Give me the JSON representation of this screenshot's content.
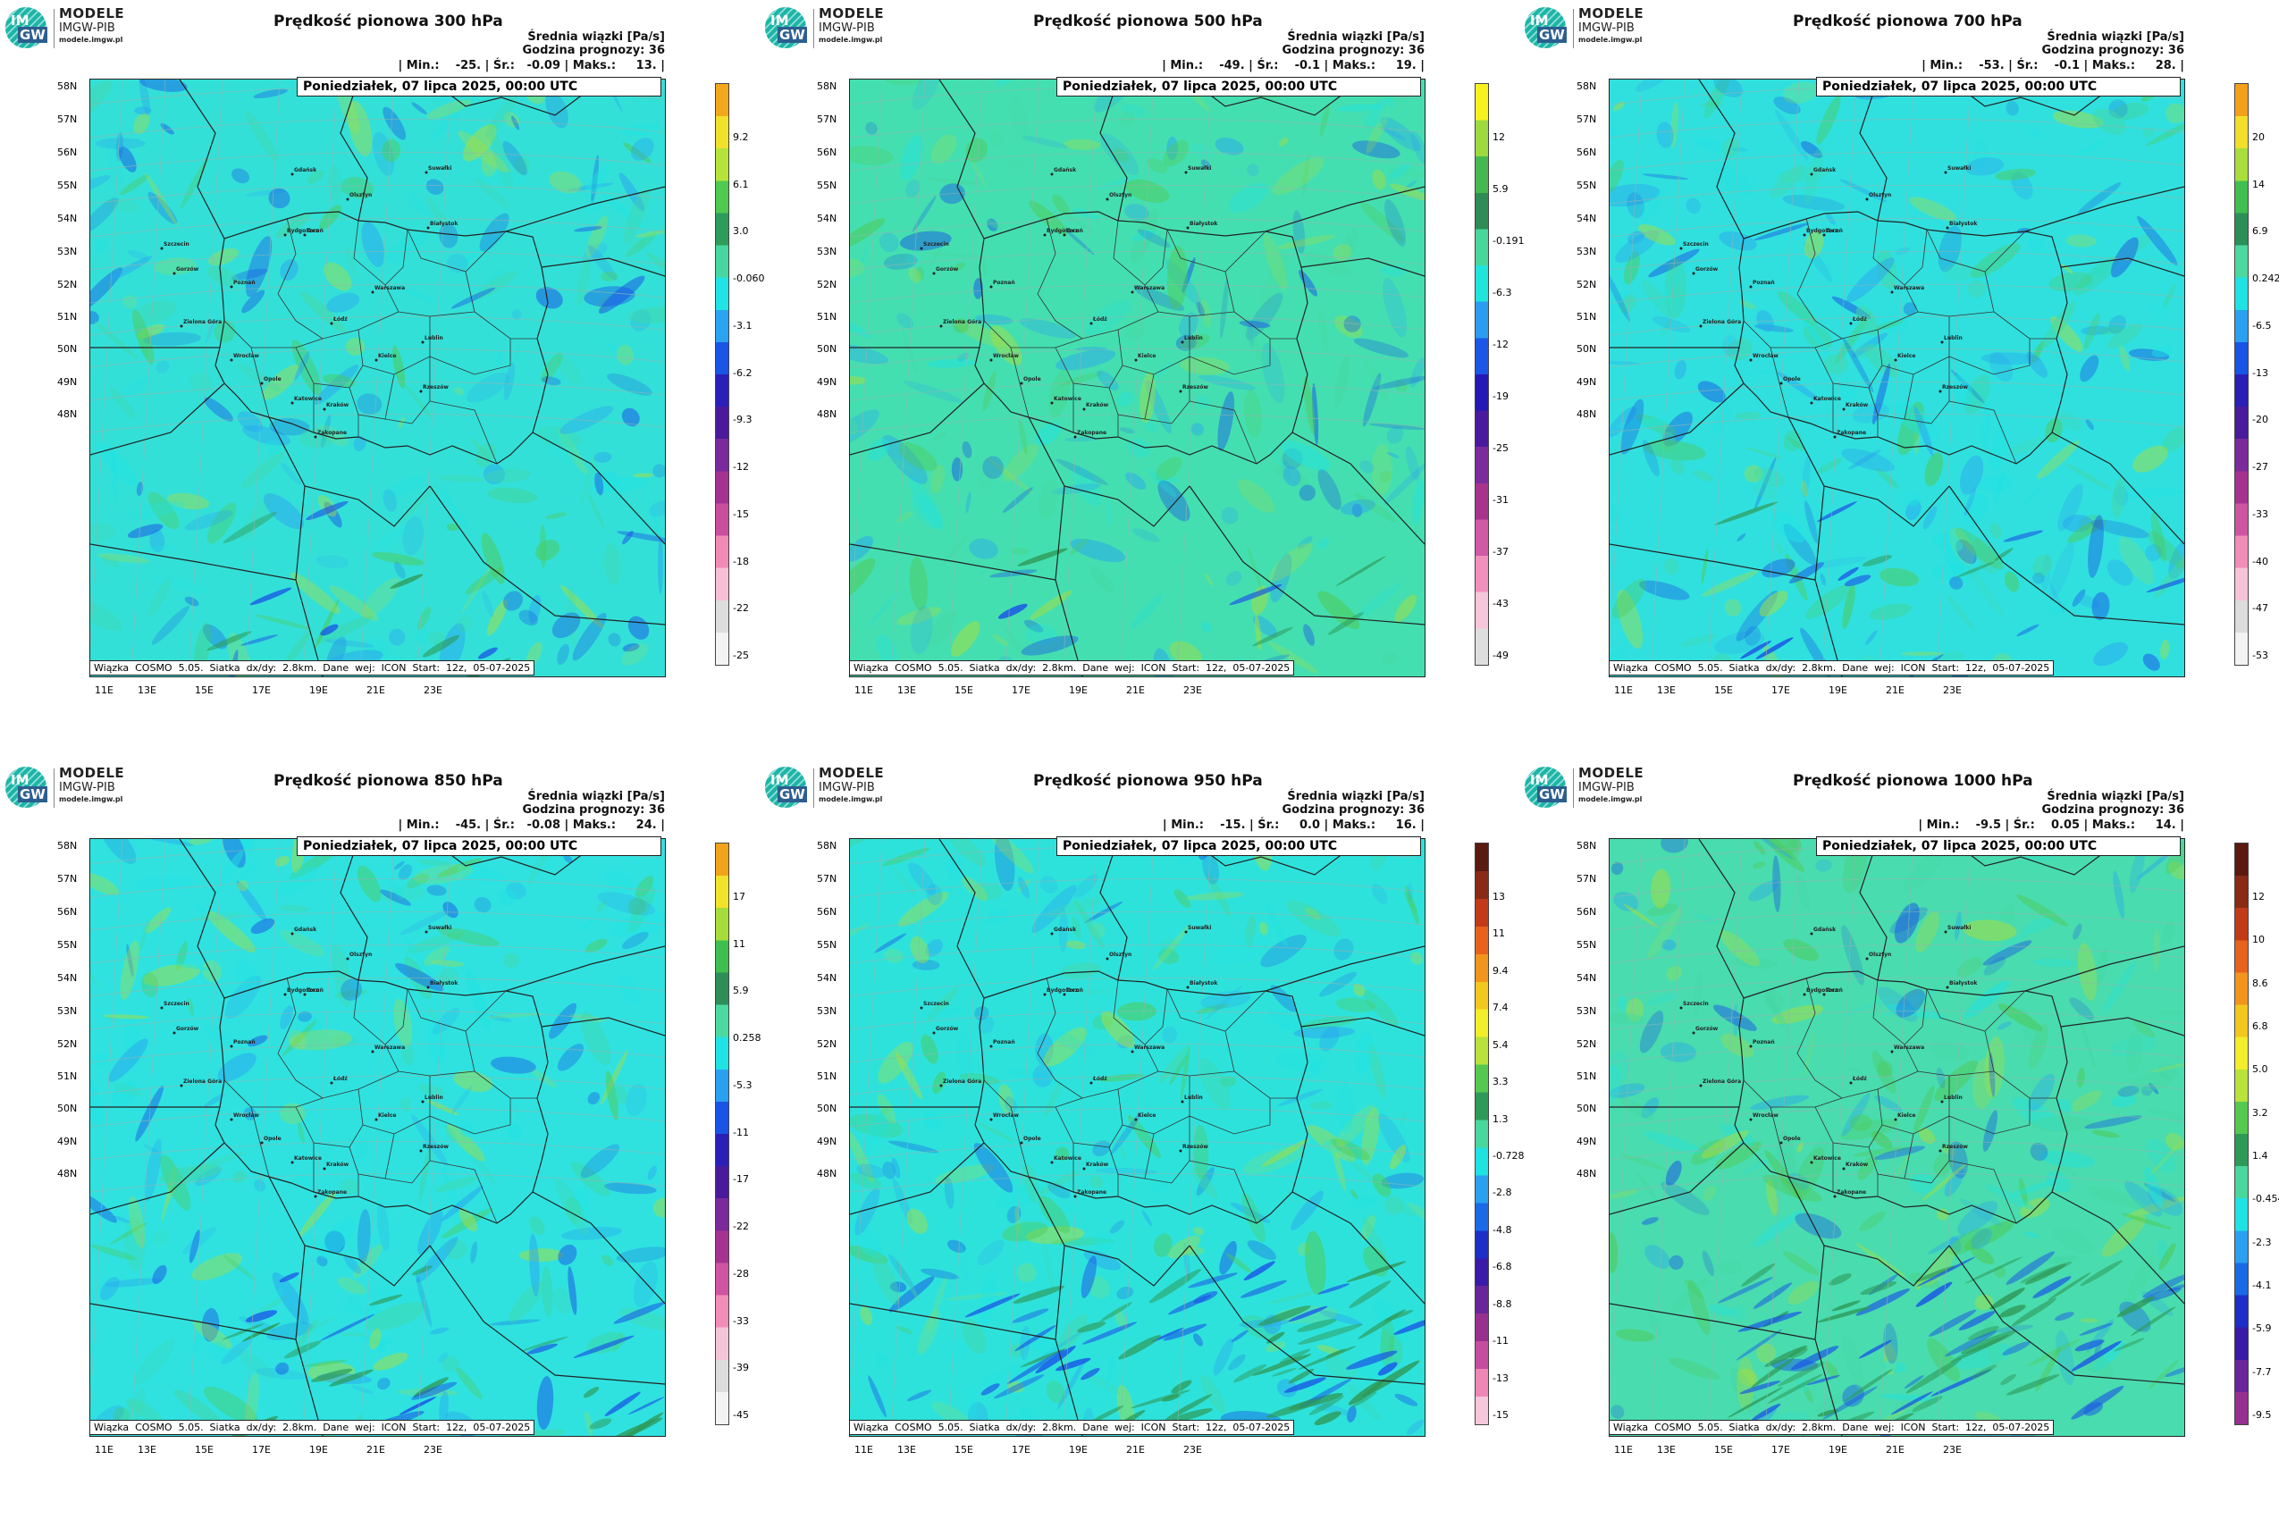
{
  "logo": {
    "line1": "MODELE",
    "line2": "IMGW-PIB",
    "line3": "modele.imgw.pl",
    "mark_top": "IM",
    "mark_bottom": "GW"
  },
  "common": {
    "date": "Poniedziałek, 07 lipca 2025, 00:00 UTC",
    "footer": "Wiązka  COSMO  5.05.  Siatka  dx/dy:  2.8km.  Dane  wej:  ICON  Start:  12z,  05-07-2025",
    "lat_ticks": [
      "58N",
      "57N",
      "56N",
      "55N",
      "54N",
      "53N",
      "52N",
      "51N",
      "50N",
      "49N",
      "48N"
    ],
    "lon_ticks": [
      "11E",
      "13E",
      "15E",
      "17E",
      "19E",
      "21E",
      "23E"
    ]
  },
  "panels": [
    {
      "title": "Prędkość pionowa 300 hPa",
      "info_line1": "Średnia wiązki [Pa/s]",
      "info_line2": "Godzina prognozy: 36",
      "stats": "| Min.:    -25. | Śr.:   -0.09 | Maks.:     13. |",
      "colorbar_labels": [
        "9.2",
        "6.1",
        "3.0",
        "-0.060",
        "-3.1",
        "-6.2",
        "-9.3",
        "-12",
        "-15",
        "-18",
        "-22",
        "-25"
      ],
      "colorbar_colors": [
        "#f2a81c",
        "#f2e12a",
        "#b6e33a",
        "#4fc950",
        "#2e9c5a",
        "#47d7a0",
        "#20e3e3",
        "#2aa4f0",
        "#1a55e6",
        "#2a1fb8",
        "#4b1a9c",
        "#7a2a9c",
        "#a3338f",
        "#c94f9d",
        "#f28ab6",
        "#f5c0d6",
        "#dddddd",
        "#f3f3f3"
      ],
      "seed": 3
    },
    {
      "title": "Prędkość pionowa 500 hPa",
      "info_line1": "Średnia wiązki [Pa/s]",
      "info_line2": "Godzina prognozy: 36",
      "stats": "| Min.:    -49. | Śr.:    -0.1 | Maks.:     19. |",
      "colorbar_labels": [
        "12",
        "5.9",
        "-0.191",
        "-6.3",
        "-12",
        "-19",
        "-25",
        "-31",
        "-37",
        "-43",
        "-49"
      ],
      "colorbar_colors": [
        "#f7f21e",
        "#9ed93d",
        "#45b94f",
        "#2e8c55",
        "#48d79a",
        "#1fe5dc",
        "#2a9df0",
        "#1b56e8",
        "#2418b6",
        "#4a199d",
        "#7c2b9c",
        "#a8338e",
        "#d15aa5",
        "#f290bd",
        "#f6c6da",
        "#dedede"
      ],
      "seed": 7
    },
    {
      "title": "Prędkość pionowa 700 hPa",
      "info_line1": "Średnia wiązki [Pa/s]",
      "info_line2": "Godzina prognozy: 36",
      "stats": "| Min.:    -53. | Śr.:    -0.1 | Maks.:     28. |",
      "colorbar_labels": [
        "20",
        "14",
        "6.9",
        "0.242",
        "-6.5",
        "-13",
        "-20",
        "-27",
        "-33",
        "-40",
        "-47",
        "-53"
      ],
      "colorbar_colors": [
        "#f2a01c",
        "#f2df2a",
        "#a9de3a",
        "#3fbf4f",
        "#2c8f58",
        "#4bd9a0",
        "#1fe2e2",
        "#2aa0f0",
        "#1954e6",
        "#2a1fb6",
        "#4a1a9c",
        "#7a2a9a",
        "#a6328f",
        "#cf55a2",
        "#f28db9",
        "#f6c4d8",
        "#dcdcdc",
        "#f3f3f3"
      ],
      "seed": 11
    },
    {
      "title": "Prędkość pionowa 850 hPa",
      "info_line1": "Średnia wiązki [Pa/s]",
      "info_line2": "Godzina prognozy: 36",
      "stats": "| Min.:    -45. | Śr.:   -0.08 | Maks.:     24. |",
      "colorbar_labels": [
        "17",
        "11",
        "5.9",
        "0.258",
        "-5.3",
        "-11",
        "-17",
        "-22",
        "-28",
        "-33",
        "-39",
        "-45"
      ],
      "colorbar_colors": [
        "#f2a31c",
        "#f2e22a",
        "#a7dd3a",
        "#3fbf4f",
        "#2d8e57",
        "#4bd99f",
        "#1fe2e2",
        "#2aa0f0",
        "#1954e6",
        "#2a1fb6",
        "#4a1a9c",
        "#7a2a9a",
        "#a6328f",
        "#cf55a2",
        "#f28db9",
        "#f6c4d8",
        "#dcdcdc",
        "#f3f3f3"
      ],
      "seed": 17
    },
    {
      "title": "Prędkość pionowa 950 hPa",
      "info_line1": "Średnia wiązki [Pa/s]",
      "info_line2": "Godzina prognozy: 36",
      "stats": "| Min.:    -15. | Śr.:     0.0 | Maks.:     16. |",
      "colorbar_labels": [
        "13",
        "11",
        "9.4",
        "7.4",
        "5.4",
        "3.3",
        "1.3",
        "-0.728",
        "-2.8",
        "-4.8",
        "-6.8",
        "-8.8",
        "-11",
        "-13",
        "-15"
      ],
      "colorbar_colors": [
        "#5a1a10",
        "#8a2a14",
        "#c23a18",
        "#e8621c",
        "#f2951c",
        "#f2c81c",
        "#f2ee2a",
        "#b9e23a",
        "#55c94f",
        "#2e9a58",
        "#48d79d",
        "#1fe2e2",
        "#2aa0f0",
        "#1a6ae8",
        "#1e2ec8",
        "#3a1aa8",
        "#6a259c",
        "#97308f",
        "#c64c9f",
        "#ee86b6",
        "#f6c6da"
      ],
      "seed": 23
    },
    {
      "title": "Prędkość pionowa 1000 hPa",
      "info_line1": "Średnia wiązki [Pa/s]",
      "info_line2": "Godzina prognozy: 36",
      "stats": "| Min.:    -9.5 | Śr.:    0.05 | Maks.:     14. |",
      "colorbar_labels": [
        "12",
        "10",
        "8.6",
        "6.8",
        "5.0",
        "3.2",
        "1.4",
        "-0.454",
        "-2.3",
        "-4.1",
        "-5.9",
        "-7.7",
        "-9.5"
      ],
      "colorbar_colors": [
        "#5a1a10",
        "#8a2a14",
        "#c23a18",
        "#e8621c",
        "#f2951c",
        "#f2c81c",
        "#f2ee2a",
        "#b9e23a",
        "#55c94f",
        "#2e9a58",
        "#48d79d",
        "#1fe2e2",
        "#2aa0f0",
        "#1a6ae8",
        "#1e2ec8",
        "#3a1aa8",
        "#6a259c",
        "#97308f"
      ],
      "seed": 29
    }
  ]
}
